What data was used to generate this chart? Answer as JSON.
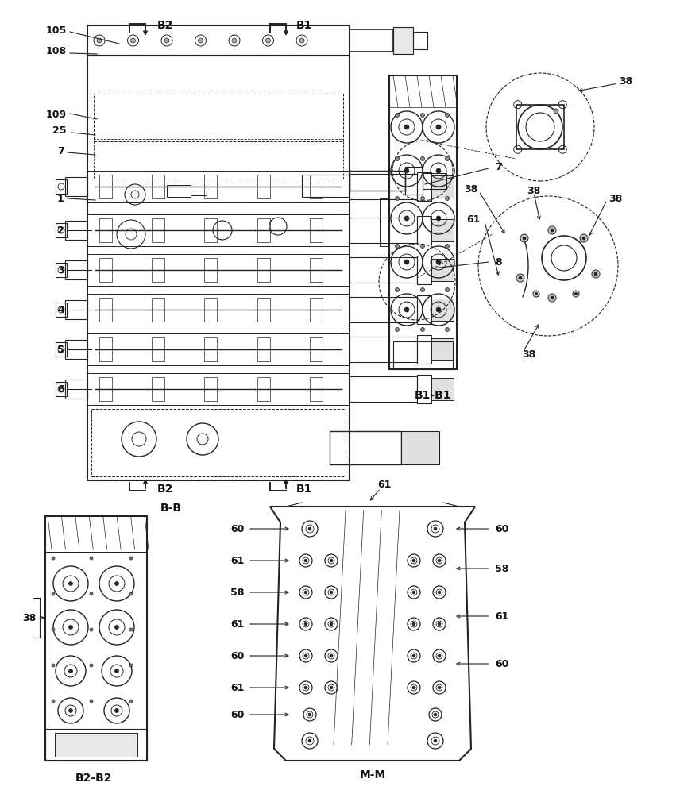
{
  "bg_color": "#ffffff",
  "lc": "#222222",
  "figsize": [
    8.56,
    10.0
  ],
  "dpi": 100,
  "BB_label": "B-B",
  "B1B1_label": "B1-B1",
  "B2B2_label": "B2-B2",
  "MM_label": "M-M",
  "part_labels_BB_left": [
    "105",
    "108",
    "109",
    "1",
    "2",
    "3",
    "4",
    "5",
    "6",
    "25",
    "7"
  ],
  "part_labels_BB_right": [
    "7",
    "8"
  ],
  "part_labels_B1B1": [
    "38",
    "38",
    "38",
    "38",
    "61"
  ],
  "part_label_B2B2": "38",
  "part_labels_MM_left": [
    "60",
    "61",
    "58",
    "61",
    "60",
    "61",
    "60"
  ],
  "part_labels_MM_right": [
    "60",
    "58",
    "61",
    "60"
  ]
}
